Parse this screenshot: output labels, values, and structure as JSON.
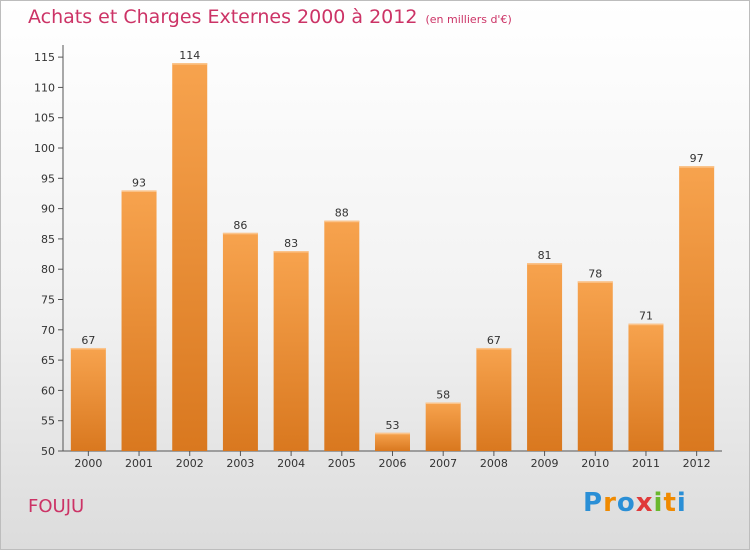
{
  "header": {
    "title": "Achats et Charges Externes 2000 à 2012",
    "unit": "(en milliers d'€)"
  },
  "footer": {
    "commune": "FOUJU",
    "logo_letters": [
      "P",
      "r",
      "o",
      "x",
      "i",
      "t",
      "i"
    ],
    "logo_colors": [
      "#2a8fd6",
      "#f08a00",
      "#2a8fd6",
      "#e03a3a",
      "#6ab82e",
      "#f08a00",
      "#2a8fd6"
    ]
  },
  "chart_data": {
    "type": "bar",
    "title": "Achats et Charges Externes 2000 à 2012",
    "subtitle": "(en milliers d'€)",
    "xlabel": "",
    "ylabel": "",
    "categories": [
      "2000",
      "2001",
      "2002",
      "2003",
      "2004",
      "2005",
      "2006",
      "2007",
      "2008",
      "2009",
      "2010",
      "2011",
      "2012"
    ],
    "values": [
      67,
      93,
      114,
      86,
      83,
      88,
      53,
      58,
      67,
      81,
      78,
      71,
      97
    ],
    "ylim": [
      50,
      117
    ],
    "yticks": [
      50,
      55,
      60,
      65,
      70,
      75,
      80,
      85,
      90,
      95,
      100,
      105,
      110,
      115
    ],
    "grid": false,
    "bar_color_light": "#f7a34e",
    "bar_color_dark": "#d9781f",
    "axis_color": "#555555"
  }
}
